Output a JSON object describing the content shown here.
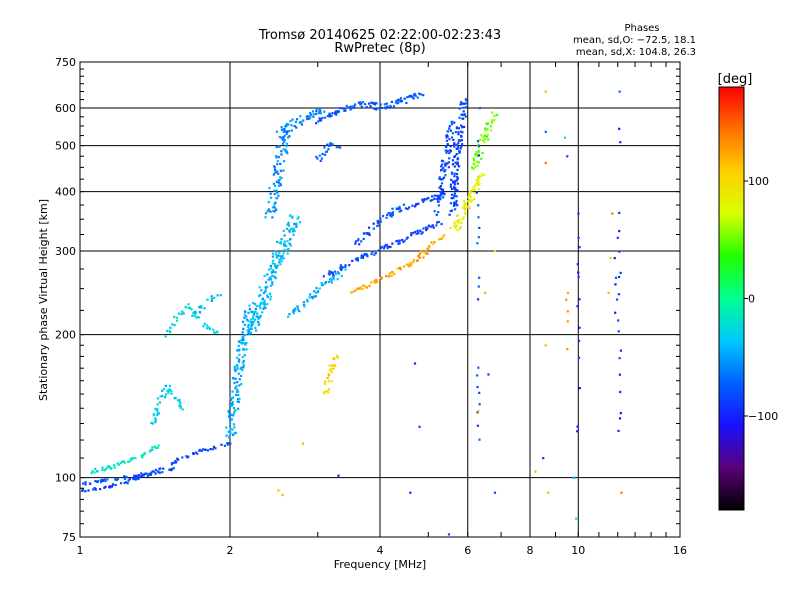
{
  "chart_data": {
    "type": "scatter",
    "title": "Tromsø 20140625 02:22:00-02:23:43",
    "subtitle": "RwPretec (8p)",
    "xlabel": "Frequency [MHz]",
    "ylabel": "Stationary phase Virtual Height [km]",
    "x_scale": "log",
    "y_scale": "log",
    "xlim": [
      1,
      16
    ],
    "ylim": [
      75,
      750
    ],
    "x_ticks": [
      1,
      2,
      4,
      6,
      8,
      10,
      16
    ],
    "x_tick_labels": [
      "1",
      "2",
      "4",
      "6",
      "8",
      "10",
      "16"
    ],
    "y_ticks": [
      75,
      100,
      200,
      300,
      400,
      500,
      600,
      750
    ],
    "y_tick_labels": [
      "75",
      "100",
      "200",
      "300",
      "400",
      "500",
      "600",
      "750"
    ],
    "grid": true,
    "phases_box": {
      "title": "Phases",
      "line1": "mean, sd,O: −72.5, 18.1",
      "line2": "mean, sd,X: 104.8, 26.3"
    },
    "colorbar": {
      "label": "[deg]",
      "range": [
        -180,
        180
      ],
      "ticks": [
        100,
        0,
        -100
      ],
      "tick_labels": [
        "100",
        "0",
        "−100"
      ],
      "colors": [
        "#000000",
        "#5a0078",
        "#1a10ff",
        "#0060ff",
        "#00c8ff",
        "#00ff90",
        "#20ff00",
        "#d8ff00",
        "#ffd000",
        "#ff7000",
        "#ff0000"
      ]
    },
    "traces": [
      {
        "phase": -85,
        "spread": 3,
        "density": 3,
        "x": [
          1.0,
          1.1,
          1.2,
          1.35,
          1.5,
          1.6,
          1.75,
          1.9,
          2.0
        ],
        "y": [
          94,
          95,
          97,
          101,
          106,
          110,
          114,
          116,
          118
        ]
      },
      {
        "phase": -15,
        "spread": 4,
        "density": 4,
        "x": [
          1.05,
          1.15,
          1.25,
          1.35,
          1.45
        ],
        "y": [
          103,
          105,
          108,
          112,
          118
        ]
      },
      {
        "phase": -80,
        "spread": 3,
        "density": 3,
        "x": [
          1.0,
          1.15,
          1.3,
          1.45,
          1.55
        ],
        "y": [
          97,
          99,
          101,
          103,
          105
        ]
      },
      {
        "phase": -30,
        "spread": 6,
        "density": 4,
        "x": [
          1.4,
          1.45,
          1.5,
          1.6
        ],
        "y": [
          130,
          145,
          155,
          140
        ]
      },
      {
        "phase": -30,
        "spread": 5,
        "density": 3,
        "x": [
          1.5,
          1.55,
          1.65,
          1.75,
          1.9
        ],
        "y": [
          200,
          215,
          230,
          212,
          200
        ]
      },
      {
        "phase": -40,
        "spread": 5,
        "density": 3,
        "x": [
          1.7,
          1.8,
          1.9
        ],
        "y": [
          220,
          235,
          245
        ]
      },
      {
        "phase": -45,
        "spread": 10,
        "density": 6,
        "x": [
          2.0,
          2.05,
          2.1,
          2.15,
          2.2
        ],
        "y": [
          120,
          150,
          180,
          205,
          230
        ]
      },
      {
        "phase": -40,
        "spread": 12,
        "density": 8,
        "x": [
          2.2,
          2.3,
          2.4,
          2.5,
          2.6,
          2.7
        ],
        "y": [
          200,
          230,
          260,
          290,
          320,
          350
        ]
      },
      {
        "phase": -55,
        "spread": 12,
        "density": 6,
        "x": [
          2.4,
          2.45,
          2.5,
          2.55,
          2.6
        ],
        "y": [
          360,
          400,
          450,
          500,
          550
        ]
      },
      {
        "phase": -60,
        "spread": 8,
        "density": 5,
        "x": [
          2.5,
          2.7,
          2.9,
          3.1
        ],
        "y": [
          530,
          560,
          580,
          595
        ]
      },
      {
        "phase": -75,
        "spread": 6,
        "density": 5,
        "x": [
          3.0,
          3.2,
          3.4,
          3.6,
          3.8,
          4.0,
          4.3,
          4.6,
          4.9
        ],
        "y": [
          560,
          585,
          600,
          612,
          608,
          602,
          615,
          630,
          645
        ]
      },
      {
        "phase": -70,
        "spread": 6,
        "density": 4,
        "x": [
          3.0,
          3.1,
          3.2,
          3.3
        ],
        "y": [
          470,
          490,
          505,
          495
        ]
      },
      {
        "phase": -45,
        "spread": 6,
        "density": 4,
        "x": [
          2.6,
          2.8,
          3.0,
          3.2,
          3.4
        ],
        "y": [
          220,
          230,
          248,
          262,
          275
        ]
      },
      {
        "phase": -85,
        "spread": 5,
        "density": 4,
        "x": [
          3.1,
          3.4,
          3.7,
          4.0,
          4.3,
          4.7,
          5.0,
          5.3
        ],
        "y": [
          265,
          280,
          292,
          302,
          312,
          325,
          335,
          345
        ]
      },
      {
        "phase": -80,
        "spread": 5,
        "density": 4,
        "x": [
          3.6,
          3.8,
          4.0,
          4.3,
          4.6,
          5.0,
          5.4
        ],
        "y": [
          310,
          330,
          350,
          365,
          375,
          385,
          395
        ]
      },
      {
        "phase": -82,
        "spread": 8,
        "density": 5,
        "x": [
          5.2,
          5.3,
          5.4,
          5.5,
          5.55
        ],
        "y": [
          360,
          400,
          450,
          510,
          560
        ]
      },
      {
        "phase": -85,
        "spread": 8,
        "density": 6,
        "x": [
          5.6,
          5.65,
          5.7,
          5.8,
          5.9
        ],
        "y": [
          360,
          420,
          480,
          550,
          620
        ]
      },
      {
        "phase": 125,
        "spread": 4,
        "density": 4,
        "x": [
          3.5,
          3.6,
          3.8,
          4.0,
          4.2,
          4.4,
          4.6,
          4.8,
          5.0
        ],
        "y": [
          245,
          248,
          255,
          262,
          268,
          275,
          282,
          290,
          298
        ]
      },
      {
        "phase": 120,
        "spread": 4,
        "density": 3,
        "x": [
          4.8,
          5.0,
          5.2,
          5.4
        ],
        "y": [
          295,
          305,
          315,
          325
        ]
      },
      {
        "phase": 85,
        "spread": 8,
        "density": 6,
        "x": [
          5.6,
          5.8,
          6.0,
          6.2,
          6.4
        ],
        "y": [
          330,
          350,
          380,
          410,
          440
        ]
      },
      {
        "phase": 50,
        "spread": 8,
        "density": 5,
        "x": [
          6.2,
          6.4,
          6.6,
          6.8
        ],
        "y": [
          450,
          500,
          550,
          580
        ]
      },
      {
        "phase": 105,
        "spread": 6,
        "density": 4,
        "x": [
          3.1,
          3.15,
          3.2,
          3.25
        ],
        "y": [
          150,
          160,
          170,
          180
        ]
      }
    ],
    "scatter_points": [
      {
        "x": 1.0,
        "y": 80,
        "phase": -75
      },
      {
        "x": 2.5,
        "y": 94,
        "phase": 115
      },
      {
        "x": 2.55,
        "y": 92,
        "phase": 120
      },
      {
        "x": 2.8,
        "y": 118,
        "phase": 120
      },
      {
        "x": 3.3,
        "y": 101,
        "phase": -110
      },
      {
        "x": 4.6,
        "y": 93,
        "phase": -100
      },
      {
        "x": 4.7,
        "y": 174,
        "phase": -95
      },
      {
        "x": 4.8,
        "y": 128,
        "phase": -90
      },
      {
        "x": 5.5,
        "y": 76,
        "phase": -85
      },
      {
        "x": 6.3,
        "y": 138,
        "phase": 120
      },
      {
        "x": 6.5,
        "y": 245,
        "phase": 120
      },
      {
        "x": 6.6,
        "y": 165,
        "phase": -90
      },
      {
        "x": 6.8,
        "y": 93,
        "phase": -80
      },
      {
        "x": 6.8,
        "y": 300,
        "phase": 90
      },
      {
        "x": 8.2,
        "y": 103,
        "phase": 120
      },
      {
        "x": 8.5,
        "y": 110,
        "phase": -95
      },
      {
        "x": 8.6,
        "y": 190,
        "phase": 120
      },
      {
        "x": 8.6,
        "y": 460,
        "phase": 145
      },
      {
        "x": 8.6,
        "y": 535,
        "phase": -70
      },
      {
        "x": 8.6,
        "y": 650,
        "phase": 120
      },
      {
        "x": 8.7,
        "y": 93,
        "phase": 120
      },
      {
        "x": 9.4,
        "y": 520,
        "phase": 20
      },
      {
        "x": 9.5,
        "y": 475,
        "phase": -85
      },
      {
        "x": 9.8,
        "y": 100,
        "phase": -40
      },
      {
        "x": 9.9,
        "y": 82,
        "phase": -15
      },
      {
        "x": 10.0,
        "y": 360,
        "phase": -90
      },
      {
        "x": 11.5,
        "y": 245,
        "phase": 120
      },
      {
        "x": 11.6,
        "y": 290,
        "phase": 110
      },
      {
        "x": 11.7,
        "y": 360,
        "phase": 140
      },
      {
        "x": 12.0,
        "y": 320,
        "phase": -90
      },
      {
        "x": 12.1,
        "y": 650,
        "phase": -70
      },
      {
        "x": 12.2,
        "y": 93,
        "phase": 145
      }
    ],
    "columns": [
      {
        "x": 6.3,
        "ymin": 120,
        "ymax": 620,
        "phase": -85
      },
      {
        "x": 9.5,
        "ymin": 180,
        "ymax": 245,
        "phase": 115
      },
      {
        "x": 10.0,
        "ymin": 110,
        "ymax": 320,
        "phase": -95
      },
      {
        "x": 11.9,
        "ymin": 210,
        "ymax": 290,
        "phase": -95
      },
      {
        "x": 12.1,
        "ymin": 120,
        "ymax": 560,
        "phase": -90
      }
    ]
  }
}
